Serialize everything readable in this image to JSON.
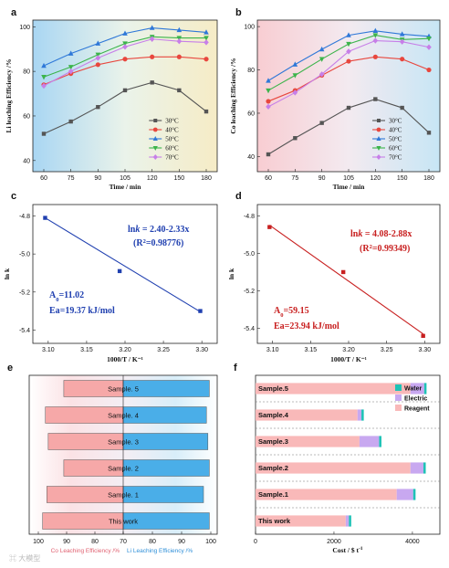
{
  "watermark": "大模型",
  "chart_data": [
    {
      "panel": "a",
      "type": "line",
      "xlabel": "Time / min",
      "ylabel": "Li leaching Efficiency /%",
      "x": [
        60,
        75,
        90,
        105,
        120,
        150,
        180
      ],
      "xticks": [
        60,
        75,
        90,
        105,
        120,
        150,
        180
      ],
      "yticks": [
        40,
        60,
        80,
        100
      ],
      "ylim": [
        35,
        103
      ],
      "legend_position": "bottom-right",
      "background": "blue-to-yellow gradient",
      "series": [
        {
          "name": "30°C",
          "color": "#555555",
          "marker": "square",
          "values": [
            52,
            57.5,
            64,
            71.5,
            75,
            71.5,
            62
          ]
        },
        {
          "name": "40°C",
          "color": "#e8473e",
          "marker": "circle",
          "values": [
            74,
            79,
            83,
            85.5,
            86.5,
            86.5,
            85.5
          ]
        },
        {
          "name": "50°C",
          "color": "#2f78d8",
          "marker": "triangle",
          "values": [
            82.5,
            88,
            92.5,
            97,
            99.5,
            98.5,
            97.5
          ]
        },
        {
          "name": "60°C",
          "color": "#3cb44b",
          "marker": "triangle-down",
          "values": [
            77.5,
            82,
            87.5,
            92.5,
            95.5,
            95,
            95
          ]
        },
        {
          "name": "70°C",
          "color": "#c77fe8",
          "marker": "diamond",
          "values": [
            73.5,
            80,
            86,
            91,
            94.5,
            93.5,
            93
          ]
        }
      ]
    },
    {
      "panel": "b",
      "type": "line",
      "xlabel": "Time / min",
      "ylabel": "Co leaching Efficiency /%",
      "x": [
        60,
        75,
        90,
        105,
        120,
        150,
        180
      ],
      "xticks": [
        60,
        75,
        90,
        105,
        120,
        150,
        180
      ],
      "yticks": [
        40,
        60,
        80,
        100
      ],
      "ylim": [
        33,
        103
      ],
      "legend_position": "bottom-right",
      "background": "pink-to-blue gradient",
      "series": [
        {
          "name": "30°C",
          "color": "#555555",
          "marker": "square",
          "values": [
            41,
            48.5,
            55.5,
            62.5,
            66.5,
            62.5,
            51
          ]
        },
        {
          "name": "40°C",
          "color": "#e8473e",
          "marker": "circle",
          "values": [
            65.5,
            70.5,
            77.5,
            84,
            86,
            85,
            80
          ]
        },
        {
          "name": "50°C",
          "color": "#2f78d8",
          "marker": "triangle",
          "values": [
            75,
            82.5,
            89.5,
            96,
            98,
            96.5,
            95.5
          ]
        },
        {
          "name": "60°C",
          "color": "#3cb44b",
          "marker": "triangle-down",
          "values": [
            70.5,
            77.5,
            85,
            92,
            96,
            94,
            94.5
          ]
        },
        {
          "name": "70°C",
          "color": "#c77fe8",
          "marker": "diamond",
          "values": [
            63,
            69.5,
            78,
            88.5,
            93.5,
            93,
            90.5
          ]
        }
      ]
    },
    {
      "panel": "c",
      "type": "scatter",
      "xlabel": "1000/T / K⁻¹",
      "ylabel": "ln k",
      "x": [
        3.096,
        3.193,
        3.298
      ],
      "y": [
        -4.81,
        -5.09,
        -5.3
      ],
      "fit_line": {
        "x": [
          3.096,
          3.298
        ],
        "y": [
          -4.81,
          -5.304
        ],
        "color": "#2040b0"
      },
      "xticks": [
        "3.10",
        "3.15",
        "3.20",
        "3.25",
        "3.30"
      ],
      "yticks": [
        "-4.8",
        "-5.0",
        "-5.2",
        "-5.4"
      ],
      "xlim": [
        3.08,
        3.32
      ],
      "ylim": [
        -5.47,
        -4.74
      ],
      "color": "#2040b0",
      "annotations": {
        "equation_prefix": "ln",
        "equation_var": "k",
        "equation_rest": " = 2.40-2.33x",
        "r2_open": "(R",
        "r2_sup": "2",
        "r2_rest": "=0.98776)",
        "a_main": "A",
        "a_sub": "0",
        "a_rest": "=11.02",
        "ea": "Ea=19.37 kJ/mol"
      }
    },
    {
      "panel": "d",
      "type": "scatter",
      "xlabel": "1000/T / K⁻¹",
      "ylabel": "ln k",
      "x": [
        3.096,
        3.193,
        3.298
      ],
      "y": [
        -4.86,
        -5.1,
        -5.44
      ],
      "fit_line": {
        "x": [
          3.096,
          3.298
        ],
        "y": [
          -4.85,
          -5.43
        ],
        "color": "#c82020"
      },
      "xticks": [
        "3.10",
        "3.15",
        "3.20",
        "3.25",
        "3.30"
      ],
      "yticks": [
        "-4.8",
        "-5.0",
        "-5.2",
        "-5.4"
      ],
      "xlim": [
        3.08,
        3.32
      ],
      "ylim": [
        -5.48,
        -4.74
      ],
      "color": "#c82020",
      "annotations": {
        "equation_prefix": "ln",
        "equation_var": "k",
        "equation_rest": " = 4.08-2.88x",
        "r2_open": "(R",
        "r2_sup": "2",
        "r2_rest": "=0.99349)",
        "a_main": "A",
        "a_sub": "0",
        "a_rest": "=59.15",
        "ea": "Ea=23.94 kJ/mol"
      }
    },
    {
      "panel": "e",
      "type": "bar",
      "orientation": "horizontal",
      "categories": [
        "This work",
        "Sample. 1",
        "Sample. 2",
        "Sample. 3",
        "Sample. 4",
        "Sample. 5"
      ],
      "co_values": [
        98.5,
        97,
        91,
        96.5,
        97.5,
        91
      ],
      "li_values": [
        99.5,
        97.5,
        99.5,
        99,
        98.5,
        99.5
      ],
      "xticks_left": [
        100,
        90,
        80,
        70
      ],
      "xticks_right": [
        70,
        80,
        90,
        100
      ],
      "co_label": "Co Leaching Efficiency /%",
      "li_label": "Li Leaching Efficiency /%",
      "co_color": "#f6a8a8",
      "li_color": "#4aaee8",
      "text_colors": {
        "co": "#e06070",
        "li": "#2f8fd8"
      }
    },
    {
      "panel": "f",
      "type": "bar",
      "orientation": "horizontal",
      "stacked": true,
      "xlabel": "Cost / $ t⁻¹",
      "xlabel_prefix": "Cost / $ t",
      "xlabel_sup": "-1",
      "categories": [
        "This work",
        "Sample.1",
        "Sample.2",
        "Sample.3",
        "Sample.4",
        "Sample.5"
      ],
      "xticks": [
        0,
        2000,
        4000
      ],
      "xlim": [
        0,
        4700
      ],
      "legend_position": "top-right",
      "series": [
        {
          "name": "Reagent",
          "color": "#f9b9b9",
          "values": [
            2300,
            3600,
            3950,
            2650,
            2600,
            3950
          ]
        },
        {
          "name": "Electric",
          "color": "#c8a8f0",
          "values": [
            80,
            420,
            330,
            500,
            100,
            350
          ]
        },
        {
          "name": "Water",
          "color": "#1ec2b6",
          "values": [
            60,
            60,
            60,
            60,
            60,
            60
          ]
        }
      ]
    }
  ]
}
